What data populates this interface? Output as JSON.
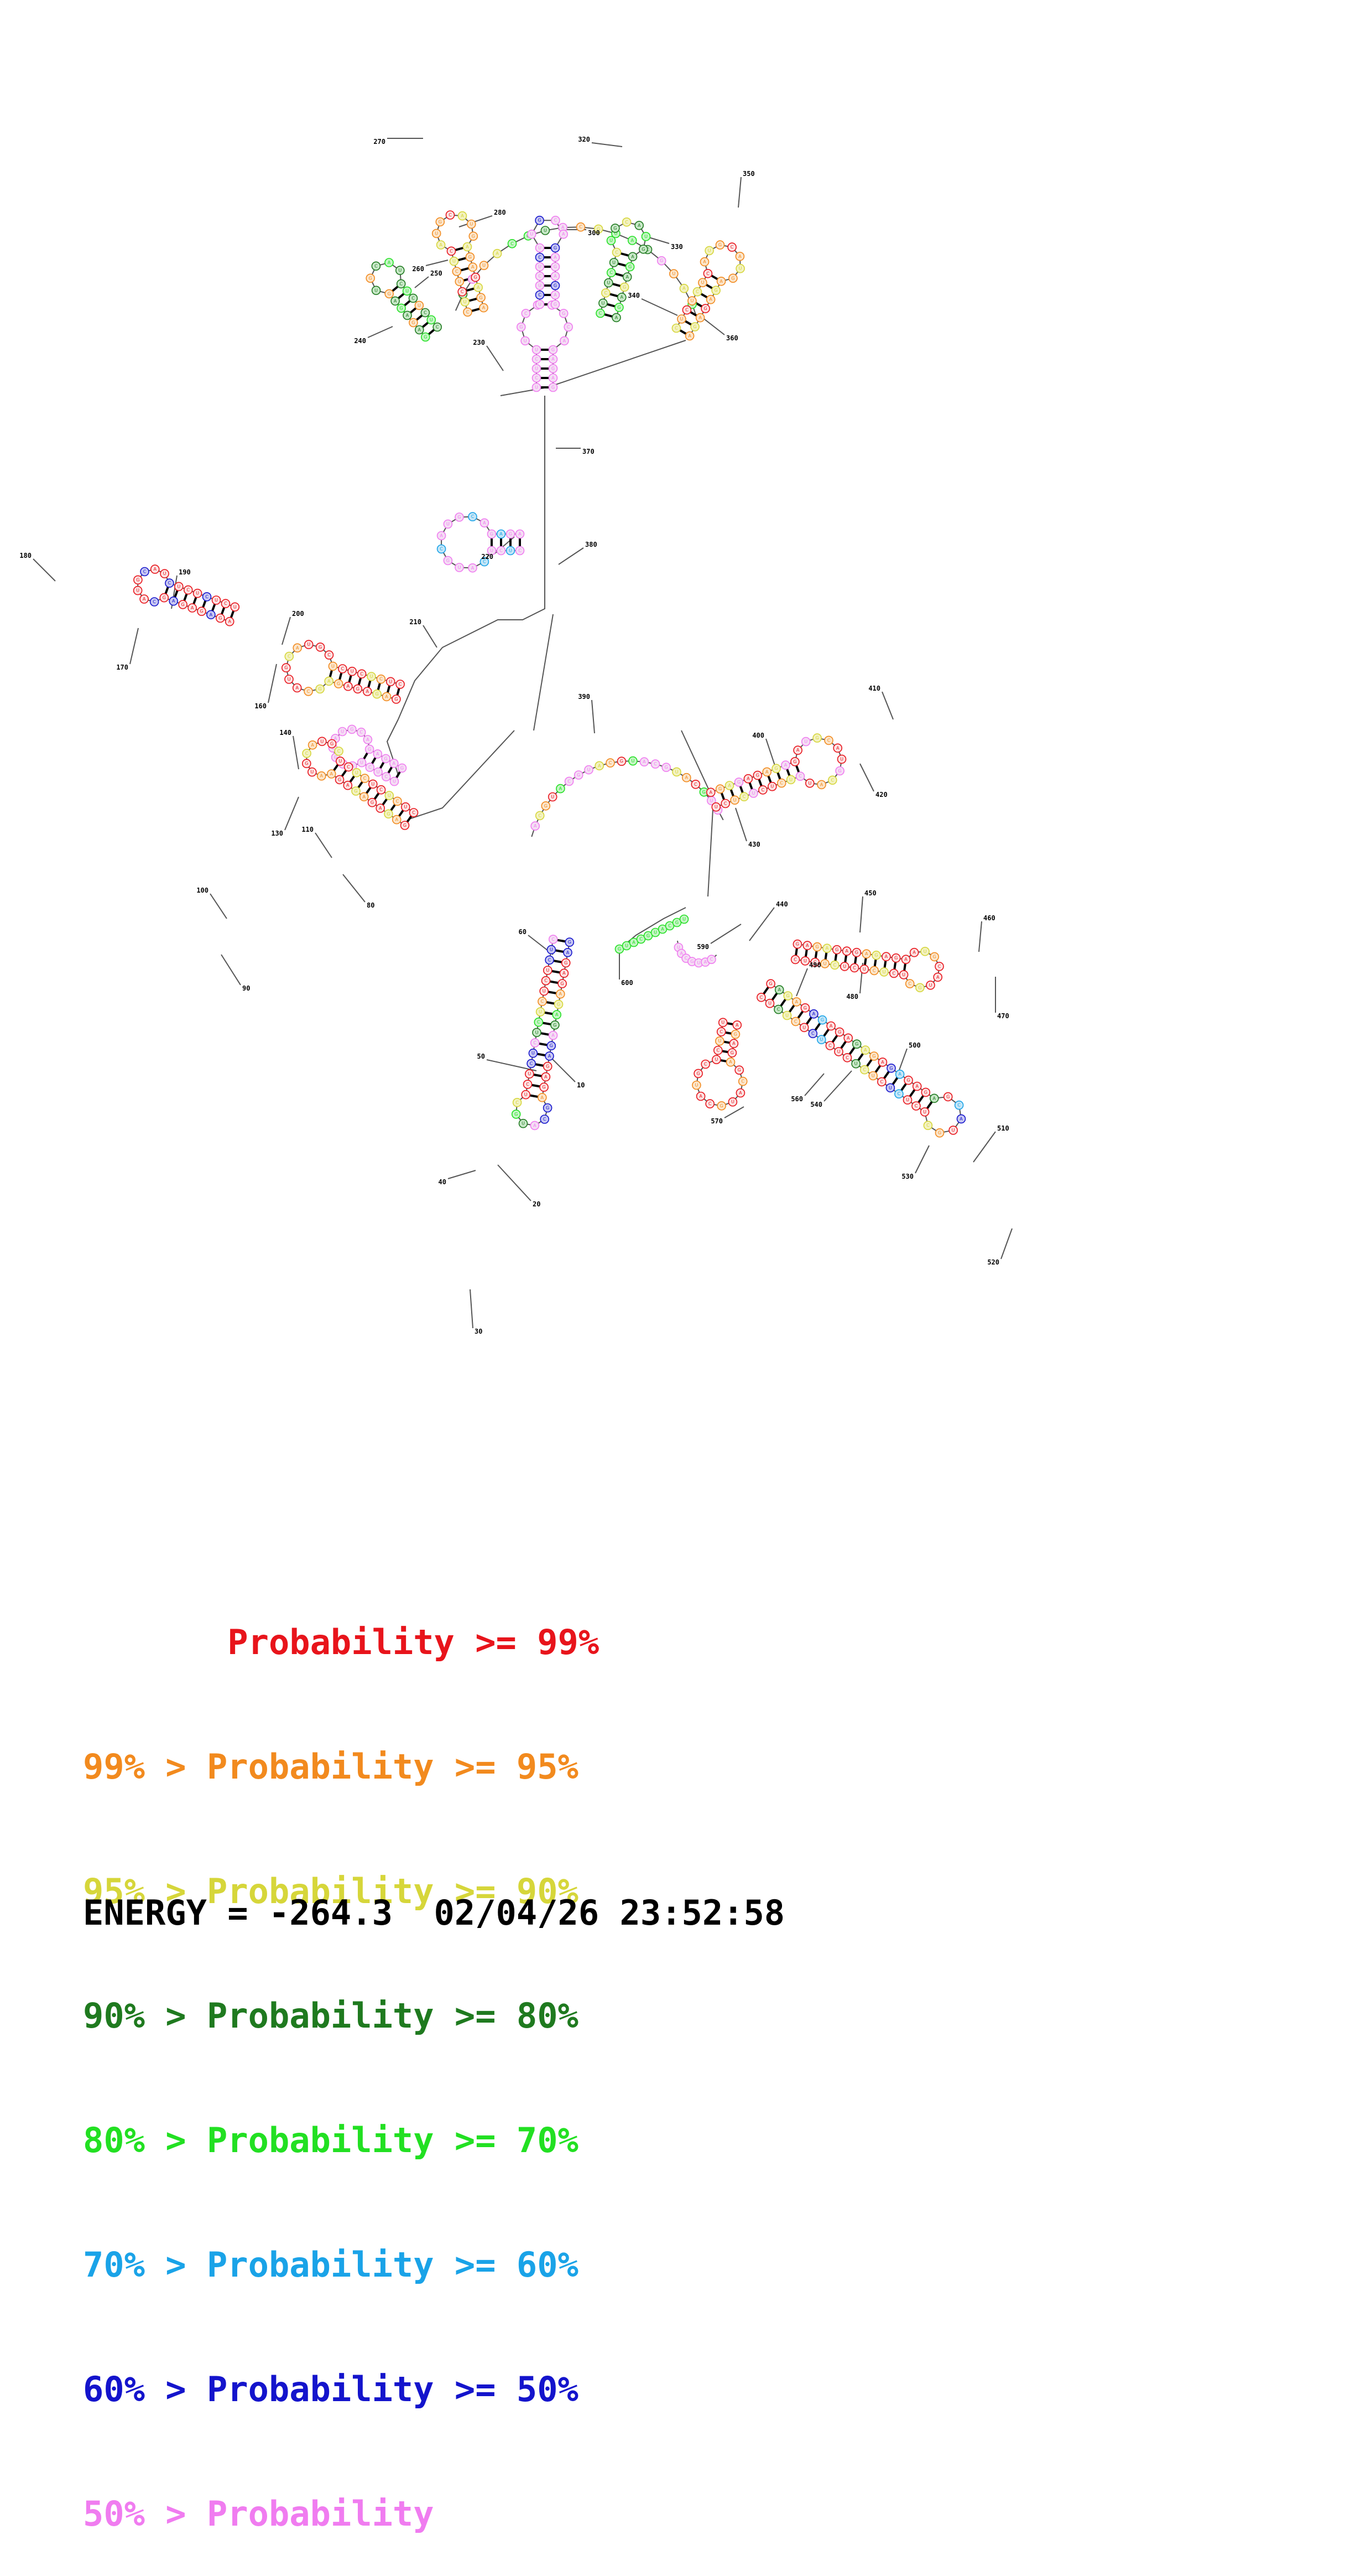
{
  "colors": {
    "p99": "#e8141b",
    "p95": "#f28a1e",
    "p90": "#d6d63a",
    "p80": "#1f7a1f",
    "p70": "#22e022",
    "p60": "#1aa3e8",
    "p50": "#1414cc",
    "plow": "#f07cf0"
  },
  "legend": [
    {
      "text": "       Probability >= 99%",
      "color_key": "p99"
    },
    {
      "text": "99% > Probability >= 95%",
      "color_key": "p95"
    },
    {
      "text": "95% > Probability >= 90%",
      "color_key": "p90"
    },
    {
      "text": "90% > Probability >= 80%",
      "color_key": "p80"
    },
    {
      "text": "80% > Probability >= 70%",
      "color_key": "p70"
    },
    {
      "text": "70% > Probability >= 60%",
      "color_key": "p60"
    },
    {
      "text": "60% > Probability >= 50%",
      "color_key": "p50"
    },
    {
      "text": "50% > Probability",
      "color_key": "plow"
    }
  ],
  "energy_label": "ENERGY = -264.3  02/04/26 23:52:58",
  "position_labels": [
    "10",
    "20",
    "30",
    "40",
    "50",
    "60",
    "80",
    "90",
    "100",
    "110",
    "130",
    "140",
    "160",
    "170",
    "180",
    "190",
    "200",
    "210",
    "220",
    "230",
    "240",
    "250",
    "260",
    "270",
    "280",
    "300",
    "320",
    "330",
    "340",
    "350",
    "360",
    "370",
    "380",
    "390",
    "400",
    "410",
    "420",
    "430",
    "440",
    "450",
    "460",
    "470",
    "480",
    "490",
    "500",
    "510",
    "520",
    "530",
    "540",
    "560",
    "570",
    "590",
    "600"
  ]
}
